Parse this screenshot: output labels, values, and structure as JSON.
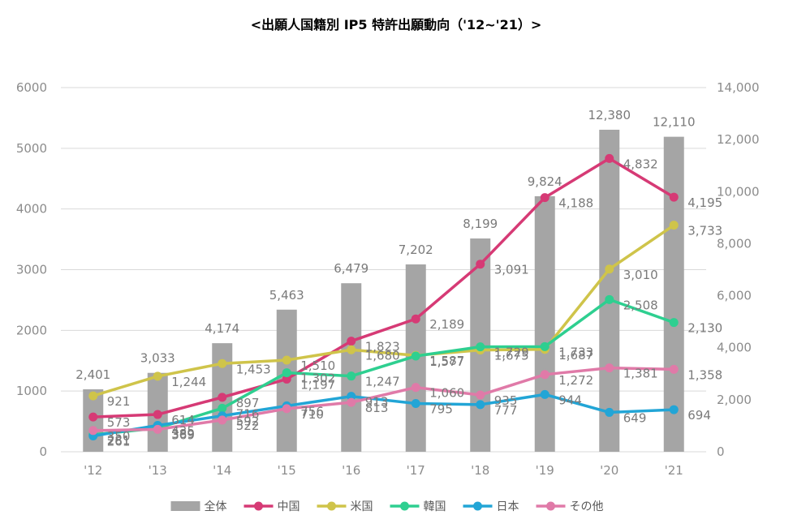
{
  "chart_data": {
    "type": "bar+line",
    "title": "<出願人国籍別 IP5 特許出願動向（'12~'21）>",
    "categories": [
      "'12",
      "'13",
      "'14",
      "'15",
      "'16",
      "'17",
      "'18",
      "'19",
      "'20",
      "'21"
    ],
    "left_axis": {
      "min": 0,
      "max": 6000,
      "step": 1000,
      "tick_labels": [
        "0",
        "1000",
        "2000",
        "3000",
        "4000",
        "5000",
        "6000"
      ]
    },
    "right_axis": {
      "min": 0,
      "max": 14000,
      "step": 2000,
      "tick_labels": [
        "0",
        "2,000",
        "4,000",
        "6,000",
        "8,000",
        "10,000",
        "12,000",
        "14,000"
      ]
    },
    "bar_series": {
      "name": "全体",
      "axis": "right",
      "color": "#a5a5a5",
      "values": [
        2401,
        3033,
        4174,
        5463,
        6479,
        7202,
        8199,
        9824,
        12380,
        12110
      ],
      "labels": [
        "2,401",
        "3,033",
        "4,174",
        "5,463",
        "6,479",
        "7,202",
        "8,199",
        "9,824",
        "12,380",
        "12,110"
      ]
    },
    "line_series": [
      {
        "name": "中国",
        "axis": "left",
        "color": "#d63a75",
        "values": [
          573,
          614,
          897,
          1197,
          1823,
          2189,
          3091,
          4188,
          4832,
          4195
        ],
        "labels": [
          "573",
          "614",
          "897",
          "1,197",
          "1,823",
          "2,189",
          "3,091",
          "4,188",
          "4,832",
          "4,195"
        ]
      },
      {
        "name": "米国",
        "axis": "left",
        "color": "#cfc44a",
        "values": [
          921,
          1244,
          1453,
          1510,
          1680,
          1587,
          1675,
          1687,
          3010,
          3733
        ],
        "labels": [
          "921",
          "1,244",
          "1,453",
          "1,510",
          "1,680",
          "1,587",
          "1,675",
          "1,687",
          "3,010",
          "3,733"
        ]
      },
      {
        "name": "韓国",
        "axis": "left",
        "color": "#2ecf90",
        "values": [
          281,
          389,
          716,
          1302,
          1247,
          1577,
          1729,
          1733,
          2508,
          2130
        ],
        "labels": [
          "281",
          "389",
          "716",
          "1,302",
          "1,247",
          "1,577",
          "1,729",
          "1,733",
          "2,508",
          "2,130"
        ]
      },
      {
        "name": "日本",
        "axis": "left",
        "color": "#22a5d6",
        "values": [
          261,
          435,
          592,
          756,
          913,
          795,
          777,
          944,
          649,
          694
        ],
        "labels": [
          "261",
          "435",
          "592",
          "756",
          "913",
          "795",
          "777",
          "944",
          "649",
          "694"
        ]
      },
      {
        "name": "その他",
        "axis": "left",
        "color": "#e07aa8",
        "values": [
          350,
          369,
          522,
          710,
          813,
          1060,
          935,
          1272,
          1381,
          1358
        ],
        "labels": [
          "350",
          "369",
          "522",
          "710",
          "813",
          "1,060",
          "935",
          "1,272",
          "1,381",
          "1,358"
        ]
      }
    ],
    "legend_position": "bottom"
  }
}
